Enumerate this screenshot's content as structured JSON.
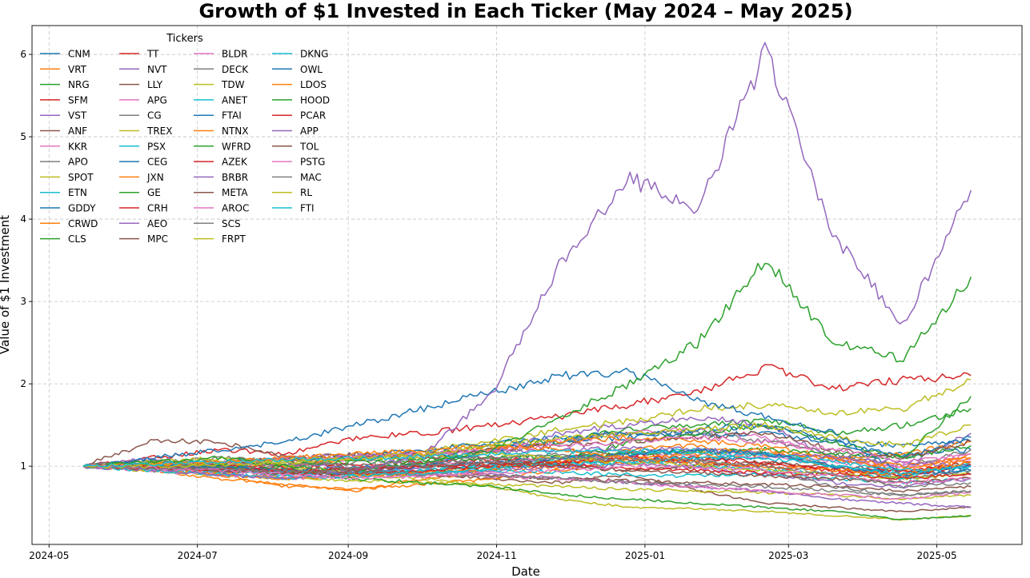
{
  "chart_data": {
    "type": "line",
    "title": "Growth of $1 Invested in Each Ticker (May 2024 – May 2025)",
    "xlabel": "Date",
    "ylabel": "Value of $1 Investment",
    "xlim": [
      "2024-04-24",
      "2025-06-05"
    ],
    "ylim": [
      0.05,
      6.35
    ],
    "x_ticks": [
      "2024-05",
      "2024-07",
      "2024-09",
      "2024-11",
      "2025-01",
      "2025-03",
      "2025-05"
    ],
    "x_tick_dates": [
      "2024-05-01",
      "2024-07-01",
      "2024-09-01",
      "2024-11-01",
      "2025-01-01",
      "2025-03-01",
      "2025-05-01"
    ],
    "y_ticks": [
      1,
      2,
      3,
      4,
      5,
      6
    ],
    "grid": true,
    "legend": {
      "title": "Tickers",
      "placement": "upper-left",
      "columns": 4
    },
    "start_date": "2024-05-15",
    "end_date": "2025-05-15",
    "palette": [
      "#1f77b4",
      "#ff7f0e",
      "#2ca02c",
      "#d62728",
      "#9467bd",
      "#8c564b",
      "#e377c2",
      "#7f7f7f",
      "#bcbd22",
      "#17becf"
    ],
    "series": [
      {
        "name": "CNM",
        "values": [
          1.0,
          0.98,
          0.94,
          0.92,
          0.96,
          1.02,
          0.98,
          1.04,
          1.1,
          1.08,
          1.12,
          1.1,
          1.15,
          1.2
        ]
      },
      {
        "name": "VRT",
        "values": [
          1.0,
          0.95,
          0.85,
          0.78,
          0.7,
          0.85,
          0.95,
          1.0,
          1.2,
          1.25,
          1.15,
          1.0,
          0.85,
          1.15
        ]
      },
      {
        "name": "NRG",
        "values": [
          1.0,
          1.05,
          1.0,
          1.02,
          1.1,
          1.15,
          1.25,
          1.3,
          1.45,
          1.5,
          1.55,
          1.4,
          1.5,
          1.7
        ]
      },
      {
        "name": "SFM",
        "values": [
          1.0,
          1.1,
          1.2,
          1.15,
          1.35,
          1.4,
          1.5,
          1.6,
          1.75,
          1.9,
          2.2,
          1.95,
          2.05,
          2.1
        ]
      },
      {
        "name": "VST",
        "values": [
          1.0,
          1.1,
          1.0,
          0.85,
          0.9,
          1.05,
          1.2,
          1.4,
          1.5,
          1.6,
          1.5,
          1.1,
          1.0,
          1.4
        ]
      },
      {
        "name": "ANF",
        "values": [
          1.0,
          1.3,
          1.3,
          1.1,
          0.95,
          0.9,
          0.85,
          0.8,
          0.9,
          0.7,
          0.55,
          0.5,
          0.45,
          0.5
        ]
      },
      {
        "name": "KKR",
        "values": [
          1.0,
          1.0,
          1.05,
          1.0,
          1.1,
          1.15,
          1.2,
          1.3,
          1.4,
          1.45,
          1.35,
          1.1,
          0.95,
          1.15
        ]
      },
      {
        "name": "APO",
        "values": [
          1.0,
          1.0,
          1.02,
          0.98,
          1.05,
          1.1,
          1.15,
          1.3,
          1.4,
          1.4,
          1.3,
          1.15,
          1.0,
          1.2
        ]
      },
      {
        "name": "SPOT",
        "values": [
          1.0,
          1.02,
          1.0,
          1.05,
          1.1,
          1.2,
          1.3,
          1.45,
          1.55,
          1.7,
          1.75,
          1.65,
          1.7,
          2.05
        ]
      },
      {
        "name": "ETN",
        "values": [
          1.0,
          0.98,
          0.95,
          0.9,
          0.92,
          0.95,
          1.0,
          1.02,
          1.05,
          1.0,
          0.95,
          0.9,
          0.85,
          0.95
        ]
      },
      {
        "name": "GDDY",
        "values": [
          1.0,
          1.02,
          1.05,
          1.08,
          1.12,
          1.2,
          1.28,
          1.35,
          1.4,
          1.38,
          1.4,
          1.3,
          1.25,
          1.3
        ]
      },
      {
        "name": "CRWD",
        "values": [
          1.0,
          1.0,
          0.9,
          0.75,
          0.72,
          0.78,
          0.85,
          0.95,
          1.05,
          1.1,
          1.15,
          1.1,
          1.15,
          1.3
        ]
      },
      {
        "name": "CLS",
        "values": [
          1.0,
          1.05,
          1.0,
          0.95,
          0.9,
          0.92,
          1.0,
          1.05,
          1.3,
          1.4,
          1.5,
          1.3,
          1.1,
          1.85
        ]
      },
      {
        "name": "TT",
        "values": [
          1.0,
          1.02,
          1.0,
          0.98,
          1.02,
          1.05,
          1.08,
          1.1,
          1.15,
          1.1,
          1.05,
          0.95,
          0.9,
          1.05
        ]
      },
      {
        "name": "NVT",
        "values": [
          1.0,
          0.95,
          0.9,
          0.85,
          0.88,
          0.9,
          0.95,
          1.0,
          1.02,
          0.98,
          0.9,
          0.8,
          0.75,
          0.85
        ]
      },
      {
        "name": "LLY",
        "values": [
          1.0,
          1.02,
          1.05,
          1.1,
          1.15,
          1.12,
          1.1,
          1.0,
          0.95,
          1.0,
          1.05,
          1.0,
          0.95,
          0.9
        ]
      },
      {
        "name": "APG",
        "values": [
          1.0,
          0.98,
          0.96,
          0.94,
          0.98,
          1.0,
          1.05,
          1.1,
          1.12,
          1.15,
          1.1,
          1.05,
          1.0,
          1.08
        ]
      },
      {
        "name": "CG",
        "values": [
          1.0,
          0.98,
          0.95,
          0.9,
          0.92,
          0.96,
          1.0,
          1.05,
          1.15,
          1.2,
          1.15,
          1.0,
          0.85,
          0.95
        ]
      },
      {
        "name": "TREX",
        "values": [
          1.0,
          0.95,
          0.9,
          0.85,
          0.82,
          0.8,
          0.78,
          0.75,
          0.72,
          0.7,
          0.68,
          0.65,
          0.6,
          0.65
        ]
      },
      {
        "name": "PSX",
        "values": [
          1.0,
          0.98,
          0.95,
          0.93,
          0.9,
          0.92,
          0.95,
          0.92,
          0.9,
          0.88,
          0.9,
          0.85,
          0.8,
          0.85
        ]
      },
      {
        "name": "CEG",
        "values": [
          1.0,
          1.05,
          1.0,
          0.95,
          0.9,
          1.0,
          1.2,
          1.3,
          1.35,
          1.45,
          1.5,
          1.3,
          1.1,
          1.35
        ]
      },
      {
        "name": "JXN",
        "values": [
          1.0,
          1.02,
          1.05,
          1.0,
          1.1,
          1.15,
          1.2,
          1.3,
          1.35,
          1.3,
          1.25,
          1.1,
          0.95,
          1.1
        ]
      },
      {
        "name": "GE",
        "values": [
          1.0,
          1.02,
          1.04,
          1.02,
          1.05,
          1.08,
          1.1,
          1.12,
          1.15,
          1.18,
          1.2,
          1.15,
          1.1,
          1.25
        ]
      },
      {
        "name": "CRH",
        "values": [
          1.0,
          0.98,
          0.96,
          0.95,
          0.97,
          1.0,
          1.02,
          1.05,
          1.08,
          1.05,
          1.02,
          0.98,
          0.95,
          1.02
        ]
      },
      {
        "name": "AEO",
        "values": [
          1.0,
          1.0,
          1.05,
          1.02,
          0.98,
          0.95,
          0.9,
          0.85,
          0.8,
          0.75,
          0.7,
          0.6,
          0.55,
          0.5
        ]
      },
      {
        "name": "MPC",
        "values": [
          1.0,
          0.98,
          0.96,
          0.94,
          0.92,
          0.9,
          0.88,
          0.85,
          0.82,
          0.8,
          0.78,
          0.75,
          0.7,
          0.75
        ]
      },
      {
        "name": "BLDR",
        "values": [
          1.0,
          0.95,
          0.9,
          0.85,
          0.88,
          0.9,
          0.88,
          0.85,
          0.8,
          0.75,
          0.7,
          0.65,
          0.6,
          0.68
        ]
      },
      {
        "name": "DECK",
        "values": [
          1.0,
          1.05,
          1.1,
          1.05,
          1.0,
          1.05,
          1.1,
          1.15,
          1.2,
          1.1,
          0.95,
          0.75,
          0.65,
          0.7
        ]
      },
      {
        "name": "TDW",
        "values": [
          1.0,
          1.05,
          1.1,
          1.0,
          0.9,
          0.85,
          0.75,
          0.6,
          0.5,
          0.48,
          0.45,
          0.4,
          0.35,
          0.4
        ]
      },
      {
        "name": "ANET",
        "values": [
          1.0,
          1.0,
          0.95,
          0.9,
          0.92,
          0.95,
          1.0,
          1.1,
          1.15,
          1.2,
          1.15,
          1.0,
          0.85,
          1.05
        ]
      },
      {
        "name": "FTAI",
        "values": [
          1.0,
          1.1,
          1.2,
          1.3,
          1.5,
          1.7,
          1.9,
          2.1,
          2.15,
          1.8,
          1.6,
          1.4,
          0.9,
          0.95
        ]
      },
      {
        "name": "NTNX",
        "values": [
          1.0,
          0.98,
          0.9,
          0.85,
          0.88,
          0.92,
          0.98,
          1.05,
          1.1,
          1.15,
          1.2,
          1.1,
          1.0,
          1.1
        ]
      },
      {
        "name": "WFRD",
        "values": [
          1.0,
          1.02,
          1.0,
          0.95,
          0.85,
          0.8,
          0.75,
          0.65,
          0.6,
          0.55,
          0.5,
          0.45,
          0.35,
          0.4
        ]
      },
      {
        "name": "AZEK",
        "values": [
          1.0,
          0.98,
          0.95,
          0.92,
          0.9,
          0.95,
          1.0,
          1.05,
          1.1,
          1.05,
          1.0,
          0.95,
          0.9,
          1.0
        ]
      },
      {
        "name": "BRBR",
        "values": [
          1.0,
          1.02,
          1.05,
          1.1,
          1.12,
          1.15,
          1.18,
          1.2,
          1.22,
          1.2,
          1.15,
          1.1,
          1.05,
          1.0
        ]
      },
      {
        "name": "META",
        "values": [
          1.0,
          1.02,
          1.05,
          1.08,
          1.1,
          1.15,
          1.2,
          1.25,
          1.3,
          1.35,
          1.4,
          1.2,
          1.1,
          1.3
        ]
      },
      {
        "name": "AROC",
        "values": [
          1.0,
          1.02,
          1.05,
          1.1,
          1.12,
          1.15,
          1.2,
          1.25,
          1.3,
          1.35,
          1.3,
          1.2,
          1.05,
          1.15
        ]
      },
      {
        "name": "SCS",
        "values": [
          1.0,
          1.0,
          0.98,
          0.95,
          0.92,
          0.9,
          0.88,
          0.85,
          0.8,
          0.78,
          0.75,
          0.7,
          0.65,
          0.7
        ]
      },
      {
        "name": "FRPT",
        "values": [
          1.0,
          1.02,
          1.05,
          1.08,
          1.1,
          1.12,
          1.15,
          1.1,
          1.05,
          1.0,
          0.95,
          0.9,
          0.85,
          0.9
        ]
      },
      {
        "name": "DKNG",
        "values": [
          1.0,
          0.95,
          0.9,
          0.85,
          0.88,
          0.92,
          0.98,
          1.02,
          1.05,
          1.1,
          1.15,
          1.05,
          0.95,
          1.0
        ]
      },
      {
        "name": "OWL",
        "values": [
          1.0,
          1.0,
          0.98,
          0.95,
          0.98,
          1.02,
          1.05,
          1.1,
          1.15,
          1.2,
          1.15,
          1.0,
          0.9,
          1.0
        ]
      },
      {
        "name": "LDOS",
        "values": [
          1.0,
          1.02,
          1.05,
          1.1,
          1.15,
          1.2,
          1.25,
          1.2,
          1.1,
          1.05,
          1.0,
          0.95,
          0.9,
          1.05
        ]
      },
      {
        "name": "HOOD",
        "values": [
          1.0,
          1.05,
          1.1,
          1.0,
          0.95,
          1.05,
          1.2,
          1.6,
          2.0,
          2.5,
          3.5,
          2.5,
          2.3,
          3.3
        ]
      },
      {
        "name": "PCAR",
        "values": [
          1.0,
          0.98,
          0.96,
          0.95,
          0.97,
          1.0,
          1.02,
          1.0,
          0.98,
          0.95,
          0.92,
          0.9,
          0.85,
          0.9
        ]
      },
      {
        "name": "APP",
        "values": [
          1.0,
          0.95,
          0.9,
          0.85,
          0.95,
          1.15,
          1.9,
          3.5,
          4.5,
          4.1,
          6.05,
          3.8,
          2.7,
          4.35
        ]
      },
      {
        "name": "TOL",
        "values": [
          1.0,
          0.98,
          0.95,
          0.92,
          0.95,
          1.0,
          1.05,
          1.0,
          0.95,
          0.92,
          0.88,
          0.85,
          0.8,
          0.85
        ]
      },
      {
        "name": "PSTG",
        "values": [
          1.0,
          0.98,
          0.95,
          0.9,
          0.85,
          0.88,
          0.92,
          0.95,
          1.0,
          1.0,
          0.95,
          0.88,
          0.8,
          0.85
        ]
      },
      {
        "name": "MAC",
        "values": [
          1.0,
          0.98,
          0.96,
          0.94,
          0.98,
          1.02,
          1.05,
          1.1,
          1.08,
          1.05,
          1.0,
          0.9,
          0.75,
          0.8
        ]
      },
      {
        "name": "RL",
        "values": [
          1.0,
          1.0,
          1.02,
          1.05,
          1.1,
          1.15,
          1.25,
          1.35,
          1.4,
          1.45,
          1.5,
          1.35,
          1.25,
          1.5
        ]
      },
      {
        "name": "FTI",
        "values": [
          1.0,
          1.02,
          1.05,
          1.08,
          1.1,
          1.12,
          1.15,
          1.18,
          1.2,
          1.15,
          1.1,
          1.0,
          0.9,
          1.0
        ]
      }
    ]
  }
}
